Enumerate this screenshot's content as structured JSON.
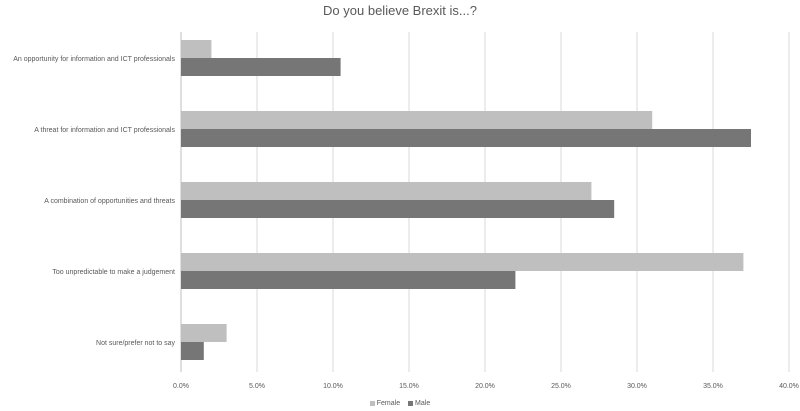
{
  "chart_data": {
    "type": "bar",
    "orientation": "horizontal",
    "title": "Do you believe Brexit is...?",
    "categories": [
      "An opportunity for information and ICT professionals",
      "A threat for information and ICT professionals",
      "A combination of opportunities and threats",
      "Too unpredictable to make a judgement",
      "Not sure/prefer not to say"
    ],
    "series": [
      {
        "name": "Female",
        "color": "#bfbfbf",
        "values": [
          2.0,
          31.0,
          27.0,
          37.0,
          3.0
        ]
      },
      {
        "name": "Male",
        "color": "#767676",
        "values": [
          10.5,
          37.5,
          28.5,
          22.0,
          1.5
        ]
      }
    ],
    "xlim": [
      0,
      40
    ],
    "x_ticks": [
      "0.0%",
      "5.0%",
      "10.0%",
      "15.0%",
      "20.0%",
      "25.0%",
      "30.0%",
      "35.0%",
      "40.0%"
    ],
    "grid": true,
    "legend_position": "bottom"
  }
}
